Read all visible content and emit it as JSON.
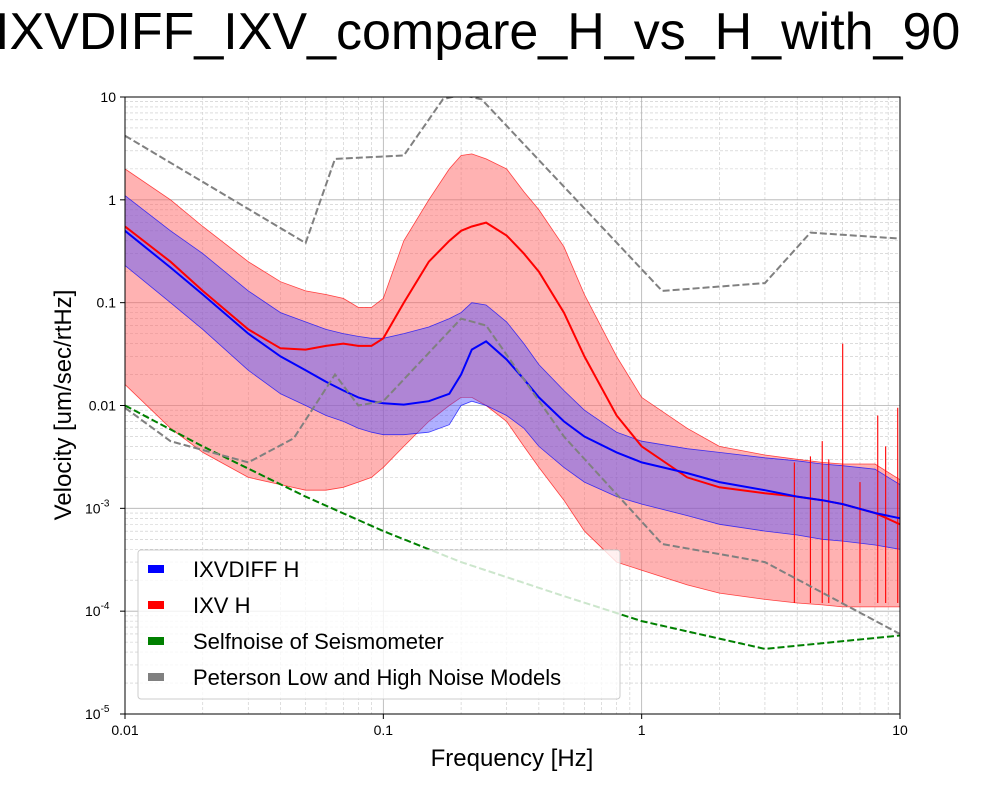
{
  "title": "IXVDIFF_IXV_compare_H_vs_H_with_90",
  "colors": {
    "blue_line": "#0000ff",
    "blue_fill": "#4d4dff",
    "red_line": "#ff0000",
    "red_fill": "#ff6666",
    "selfnoise": "#008000",
    "peterson": "#808080"
  },
  "chart_data": {
    "type": "line",
    "title": "IXVDIFF_IXV_compare_H_vs_H_with_90",
    "xlabel": "Frequency [Hz]",
    "ylabel": "Velocity [um/sec/rtHz]",
    "xscale": "log",
    "yscale": "log",
    "xlim": [
      0.01,
      10
    ],
    "ylim": [
      1e-05,
      10
    ],
    "grid": true,
    "legend_position": "lower-left",
    "x_ticks": [
      {
        "value": 0.01,
        "label": "0.01"
      },
      {
        "value": 0.1,
        "label": "0.1"
      },
      {
        "value": 1,
        "label": "1"
      },
      {
        "value": 10,
        "label": "10"
      }
    ],
    "y_ticks": [
      {
        "value": 10,
        "label": "10",
        "exp": ""
      },
      {
        "value": 1,
        "label": "1",
        "exp": ""
      },
      {
        "value": 0.1,
        "label": "0.1",
        "exp": ""
      },
      {
        "value": 0.01,
        "label": "0.01",
        "exp": ""
      },
      {
        "value": 0.001,
        "label": "10",
        "exp": "-3"
      },
      {
        "value": 0.0001,
        "label": "10",
        "exp": "-4"
      },
      {
        "value": 1e-05,
        "label": "10",
        "exp": "-5"
      }
    ],
    "legend": [
      {
        "label": "IXVDIFF H",
        "color": "#0000ff"
      },
      {
        "label": "IXV H",
        "color": "#ff0000"
      },
      {
        "label": "Selfnoise of Seismometer",
        "color": "#008000"
      },
      {
        "label": "Peterson Low and High Noise Models",
        "color": "#808080"
      }
    ],
    "series": [
      {
        "name": "IXVDIFF H",
        "kind": "median_with_band",
        "color": "#0000ff",
        "x": [
          0.01,
          0.015,
          0.02,
          0.03,
          0.04,
          0.05,
          0.06,
          0.07,
          0.08,
          0.09,
          0.1,
          0.12,
          0.15,
          0.18,
          0.2,
          0.22,
          0.25,
          0.3,
          0.35,
          0.4,
          0.5,
          0.6,
          0.8,
          1,
          1.5,
          2,
          3,
          4,
          5,
          6,
          8,
          10
        ],
        "median": [
          0.5,
          0.22,
          0.12,
          0.05,
          0.03,
          0.022,
          0.017,
          0.014,
          0.012,
          0.011,
          0.0105,
          0.0102,
          0.011,
          0.013,
          0.02,
          0.035,
          0.042,
          0.028,
          0.018,
          0.012,
          0.007,
          0.005,
          0.0035,
          0.0028,
          0.0022,
          0.0018,
          0.0015,
          0.0013,
          0.0012,
          0.0011,
          0.0009,
          0.0008
        ],
        "upper": [
          1.1,
          0.5,
          0.3,
          0.13,
          0.08,
          0.065,
          0.055,
          0.05,
          0.047,
          0.045,
          0.045,
          0.05,
          0.058,
          0.07,
          0.08,
          0.1,
          0.095,
          0.065,
          0.04,
          0.025,
          0.014,
          0.009,
          0.0055,
          0.0045,
          0.0038,
          0.0035,
          0.0031,
          0.0029,
          0.0027,
          0.0026,
          0.0024,
          0.0017
        ],
        "lower": [
          0.23,
          0.1,
          0.055,
          0.022,
          0.013,
          0.01,
          0.008,
          0.007,
          0.006,
          0.0055,
          0.0052,
          0.0052,
          0.0055,
          0.0065,
          0.01,
          0.011,
          0.01,
          0.008,
          0.006,
          0.004,
          0.0025,
          0.0018,
          0.0013,
          0.0011,
          0.00085,
          0.0007,
          0.0006,
          0.00055,
          0.0005,
          0.00048,
          0.00044,
          0.0004
        ]
      },
      {
        "name": "IXV H",
        "kind": "median_with_band",
        "color": "#ff0000",
        "x": [
          0.01,
          0.015,
          0.02,
          0.03,
          0.04,
          0.05,
          0.06,
          0.07,
          0.08,
          0.09,
          0.1,
          0.12,
          0.15,
          0.18,
          0.2,
          0.22,
          0.25,
          0.3,
          0.35,
          0.4,
          0.5,
          0.6,
          0.8,
          1,
          1.5,
          2,
          3,
          4,
          5,
          6,
          8,
          10
        ],
        "median": [
          0.55,
          0.25,
          0.13,
          0.055,
          0.036,
          0.035,
          0.038,
          0.04,
          0.038,
          0.038,
          0.045,
          0.1,
          0.25,
          0.4,
          0.5,
          0.55,
          0.6,
          0.45,
          0.3,
          0.2,
          0.08,
          0.03,
          0.008,
          0.004,
          0.002,
          0.0016,
          0.0014,
          0.0013,
          0.0012,
          0.0011,
          0.0009,
          0.0007
        ],
        "upper": [
          2,
          1,
          0.55,
          0.25,
          0.16,
          0.13,
          0.12,
          0.11,
          0.09,
          0.09,
          0.11,
          0.4,
          1,
          2,
          2.7,
          2.8,
          2.5,
          2,
          1.2,
          0.8,
          0.35,
          0.12,
          0.03,
          0.012,
          0.006,
          0.004,
          0.0033,
          0.003,
          0.0028,
          0.0027,
          0.0027,
          0.0019
        ],
        "lower": [
          0.016,
          0.006,
          0.0035,
          0.002,
          0.0017,
          0.0015,
          0.0015,
          0.0016,
          0.0018,
          0.002,
          0.0025,
          0.004,
          0.007,
          0.01,
          0.012,
          0.012,
          0.01,
          0.007,
          0.004,
          0.0025,
          0.0012,
          0.0006,
          0.0003,
          0.00025,
          0.00018,
          0.00015,
          0.00013,
          0.00012,
          0.000115,
          0.00011,
          0.00011,
          0.00011
        ]
      },
      {
        "name": "Selfnoise of Seismometer",
        "kind": "dashed",
        "color": "#008000",
        "x": [
          0.01,
          0.02,
          0.05,
          0.1,
          0.2,
          0.5,
          1,
          3,
          10
        ],
        "y": [
          0.01,
          0.004,
          0.0013,
          0.0006,
          0.0003,
          0.00014,
          8e-05,
          4.3e-05,
          5.8e-05
        ]
      },
      {
        "name": "Peterson High Noise Model",
        "kind": "dashed",
        "color": "#808080",
        "x": [
          0.01,
          0.05,
          0.065,
          0.12,
          0.17,
          0.2,
          0.24,
          1.2,
          3,
          4.5,
          10
        ],
        "y": [
          4.2,
          0.38,
          2.5,
          2.7,
          9.5,
          10.5,
          9.5,
          0.13,
          0.155,
          0.48,
          0.42
        ]
      },
      {
        "name": "Peterson Low Noise Model",
        "kind": "dashed",
        "color": "#808080",
        "x": [
          0.01,
          0.015,
          0.03,
          0.045,
          0.065,
          0.08,
          0.1,
          0.2,
          0.25,
          0.5,
          1.2,
          3,
          10
        ],
        "y": [
          0.0095,
          0.0045,
          0.0028,
          0.0048,
          0.02,
          0.01,
          0.011,
          0.07,
          0.06,
          0.005,
          0.00045,
          0.0003,
          6e-05
        ]
      }
    ],
    "spikes": [
      {
        "x": 3.9,
        "top": 0.0028
      },
      {
        "x": 4.5,
        "top": 0.0032
      },
      {
        "x": 5.0,
        "top": 0.0045
      },
      {
        "x": 5.3,
        "top": 0.003
      },
      {
        "x": 6.0,
        "top": 0.04
      },
      {
        "x": 7.0,
        "top": 0.0018
      },
      {
        "x": 8.2,
        "top": 0.008
      },
      {
        "x": 8.8,
        "top": 0.004
      },
      {
        "x": 9.8,
        "top": 0.0095
      }
    ]
  }
}
